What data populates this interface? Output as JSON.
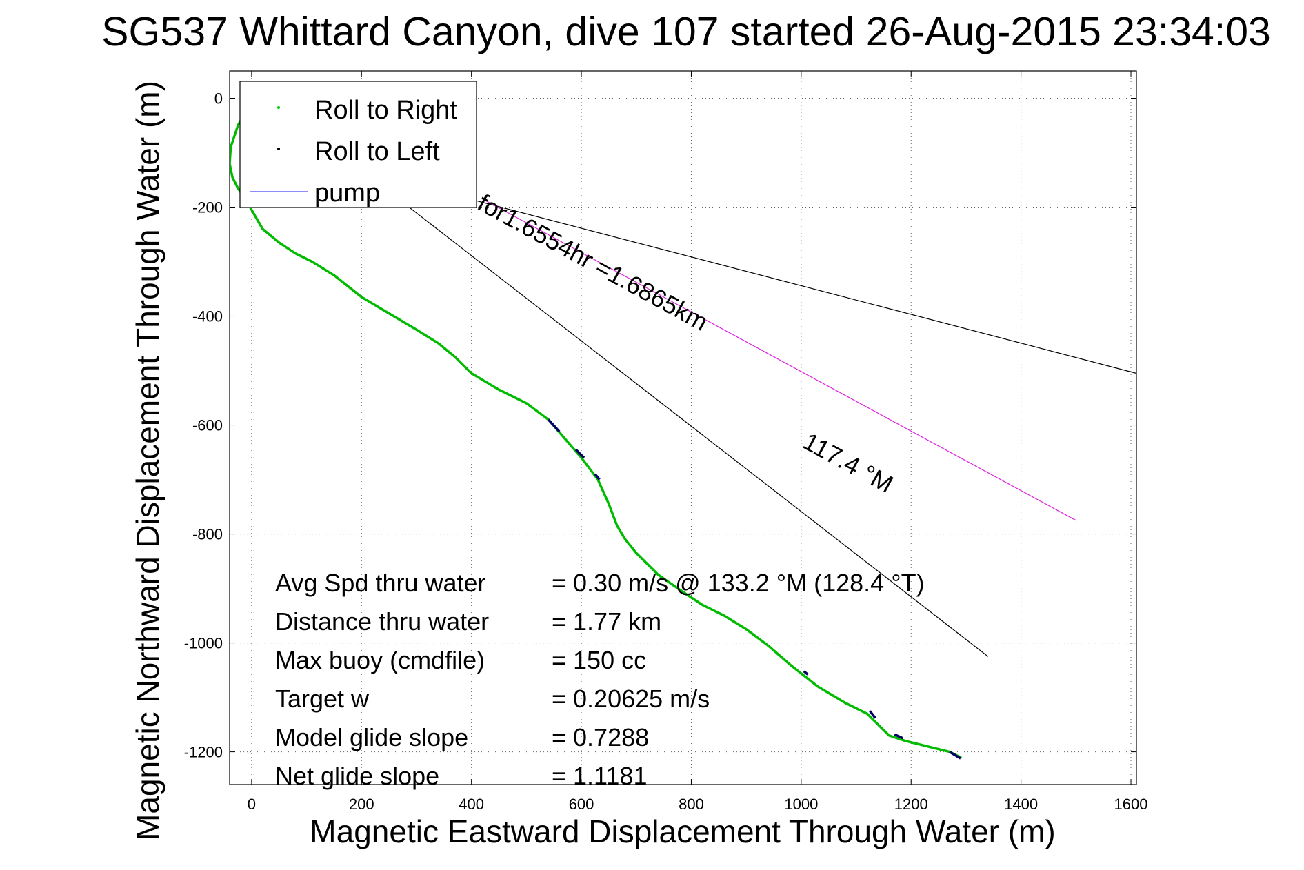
{
  "chart_data": {
    "type": "line",
    "title": "SG537 Whittard Canyon, dive 107 started 26-Aug-2015 23:34:03",
    "xlabel": "Magnetic Eastward Displacement Through Water (m)",
    "ylabel": "Magnetic Northward Displacement Through Water (m)",
    "xlim": [
      -40,
      1610
    ],
    "ylim": [
      -1260,
      50
    ],
    "xticks": [
      "0",
      "200",
      "400",
      "600",
      "800",
      "1000",
      "1200",
      "1400",
      "1600"
    ],
    "yticks": [
      "0",
      "-200",
      "-400",
      "-600",
      "-800",
      "-1000",
      "-1200"
    ],
    "grid": true,
    "legend": {
      "placement": "top-left",
      "entries": [
        {
          "label": "Roll to Right",
          "color": "#00cc00",
          "marker": "dot"
        },
        {
          "label": "Roll to Left",
          "color": "#000000",
          "marker": "dot"
        },
        {
          "label": "pump",
          "color": "#6666ff",
          "marker": "line"
        }
      ]
    },
    "series": [
      {
        "name": "Roll to Right",
        "color": "#00bb00",
        "x": [
          -5,
          -25,
          -38,
          -40,
          -35,
          -25,
          -15,
          0,
          20,
          50,
          80,
          110,
          150,
          200,
          250,
          300,
          340,
          370,
          385,
          400,
          450,
          500,
          540,
          570,
          600,
          630,
          650,
          665,
          680,
          700,
          740,
          790,
          820,
          860,
          900,
          940,
          980,
          1030,
          1080,
          1120,
          1140,
          1160,
          1190,
          1230,
          1270,
          1290
        ],
        "y": [
          -15,
          -50,
          -90,
          -120,
          -145,
          -165,
          -180,
          -205,
          -240,
          -265,
          -285,
          -300,
          -325,
          -365,
          -395,
          -425,
          -450,
          -475,
          -490,
          -505,
          -535,
          -560,
          -590,
          -625,
          -660,
          -700,
          -745,
          -785,
          -810,
          -835,
          -875,
          -910,
          -930,
          -950,
          -975,
          -1005,
          -1040,
          -1080,
          -1110,
          -1130,
          -1150,
          -1170,
          -1180,
          -1190,
          -1200,
          -1210
        ]
      },
      {
        "name": "Roll to Left",
        "color": "#000066",
        "segments": [
          {
            "x": [
              540,
              560
            ],
            "y": [
              -590,
              -612
            ]
          },
          {
            "x": [
              590,
              605
            ],
            "y": [
              -645,
              -660
            ]
          },
          {
            "x": [
              625,
              633
            ],
            "y": [
              -690,
              -700
            ]
          },
          {
            "x": [
              1005,
              1012
            ],
            "y": [
              -1052,
              -1058
            ]
          },
          {
            "x": [
              1125,
              1135
            ],
            "y": [
              -1125,
              -1138
            ]
          },
          {
            "x": [
              1170,
              1185
            ],
            "y": [
              -1168,
              -1175
            ]
          },
          {
            "x": [
              1270,
              1290
            ],
            "y": [
              -1200,
              -1212
            ]
          }
        ]
      }
    ],
    "reference_lines": [
      {
        "color": "#000000",
        "x": [
          150,
          1610
        ],
        "y": [
          -120,
          -505
        ]
      },
      {
        "color": "#000000",
        "x": [
          280,
          1340
        ],
        "y": [
          -195,
          -1025
        ]
      },
      {
        "color": "#dd22dd",
        "x": [
          420,
          1500
        ],
        "y": [
          -185,
          -775
        ]
      }
    ],
    "annotations": [
      {
        "text": "for1.6554hr =1.6865km",
        "x": 408,
        "y": -202,
        "angle": 28.6
      },
      {
        "text": "117.4 °M",
        "x": 1000,
        "y": -640,
        "angle": 28.6
      }
    ],
    "stats": [
      {
        "label": "Avg Spd thru water",
        "value": "=  0.30 m/s @ 133.2 °M (128.4 °T)"
      },
      {
        "label": "Distance thru water",
        "value": "=  1.77 km"
      },
      {
        "label": "Max buoy (cmdfile)",
        "value": "= 150 cc"
      },
      {
        "label": "Target w",
        "value": "= 0.20625 m/s"
      },
      {
        "label": "Model glide slope",
        "value": "= 0.7288"
      },
      {
        "label": "Net glide slope",
        "value": "= 1.1181"
      }
    ]
  }
}
